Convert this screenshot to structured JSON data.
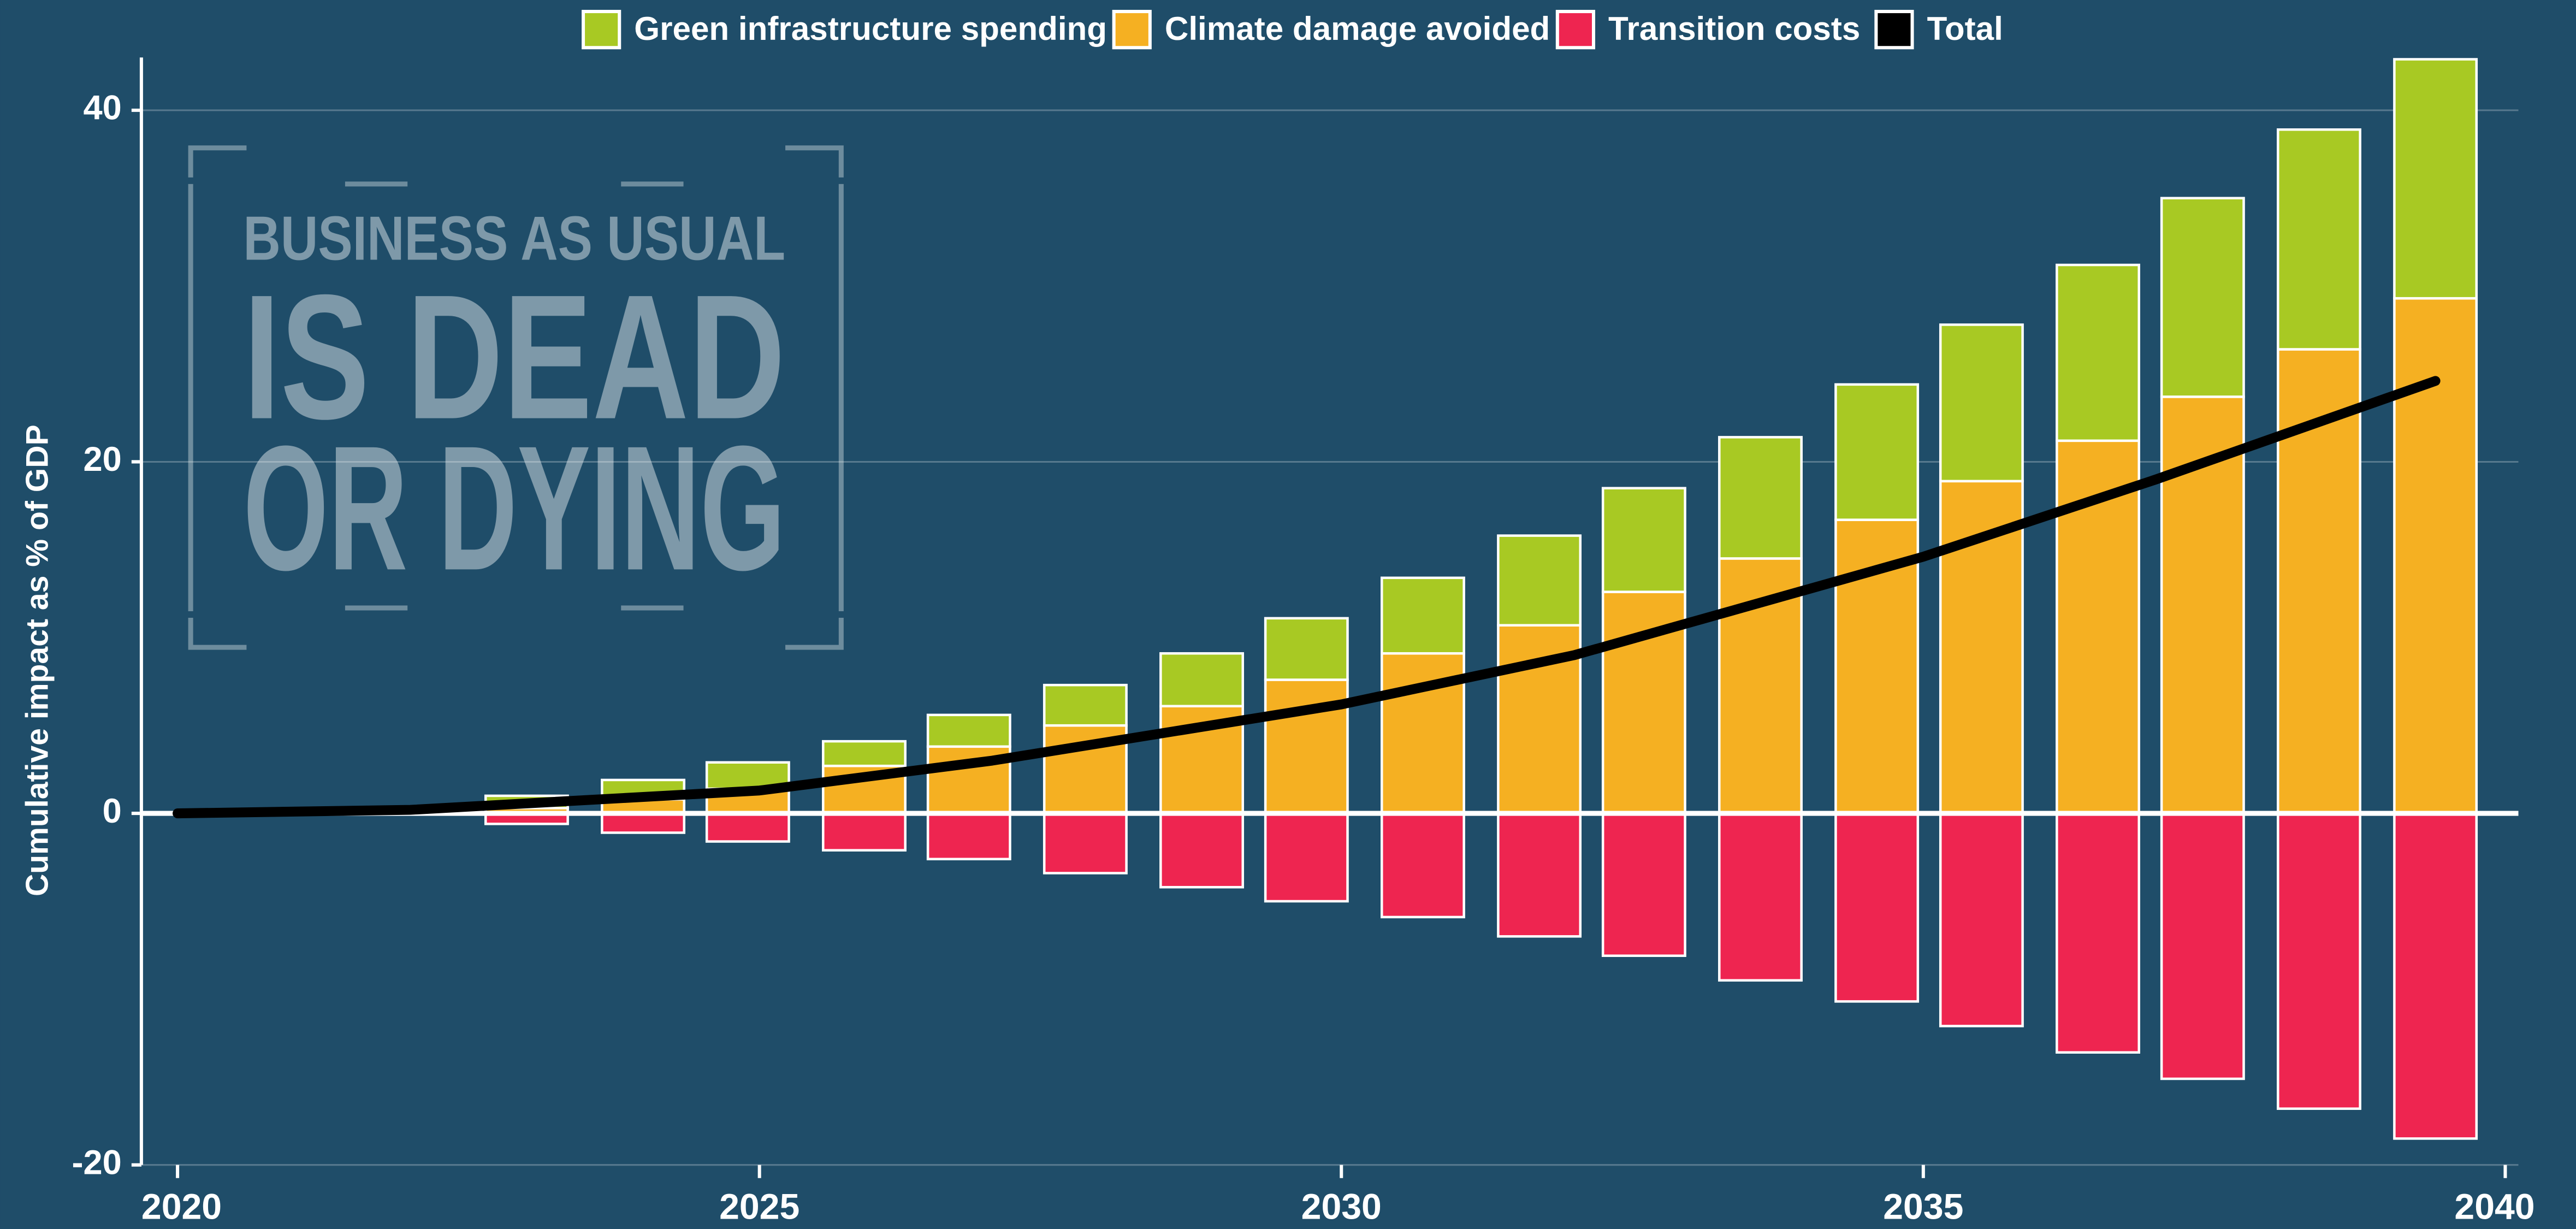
{
  "chart_data": {
    "type": "bar",
    "watermark_lines": [
      "BUSINESS AS USUAL",
      "IS DEAD",
      "OR DYING"
    ],
    "y_label": "Cumulative impact as % of GDP",
    "x": [
      2023.0,
      2024.0,
      2024.9,
      2025.9,
      2026.8,
      2027.8,
      2028.8,
      2029.7,
      2030.7,
      2031.7,
      2032.6,
      2033.6,
      2034.6,
      2035.5,
      2036.5,
      2037.4,
      2038.4,
      2039.4
    ],
    "series": [
      {
        "name": "Green infrastructure spending",
        "color": "#a8c923",
        "values": [
          0.7,
          1.1,
          1.5,
          1.4,
          1.8,
          2.3,
          3.0,
          3.5,
          4.3,
          5.1,
          5.9,
          6.9,
          7.7,
          8.9,
          10.0,
          11.3,
          12.5,
          13.6
        ]
      },
      {
        "name": "Climate damage avoided",
        "color": "#f5b022",
        "values": [
          0.3,
          0.8,
          1.4,
          2.7,
          3.8,
          5.0,
          6.1,
          7.6,
          9.1,
          10.7,
          12.6,
          14.5,
          16.7,
          18.9,
          21.2,
          23.7,
          26.4,
          29.3
        ]
      },
      {
        "name": "Transition costs",
        "color": "#ee2550",
        "values": [
          -0.6,
          -1.1,
          -1.6,
          -2.1,
          -2.6,
          -3.4,
          -4.2,
          -5.0,
          -5.9,
          -7.0,
          -8.1,
          -9.5,
          -10.7,
          -12.1,
          -13.6,
          -15.1,
          -16.8,
          -18.5
        ]
      },
      {
        "name": "Total",
        "color": "#000000",
        "type": "line",
        "x": [
          2020,
          2022,
          2025,
          2027,
          2030,
          2032,
          2035,
          2037,
          2039.4
        ],
        "values": [
          0,
          0.2,
          1.3,
          3.0,
          6.2,
          9.0,
          14.6,
          19.0,
          24.6
        ]
      }
    ],
    "xlim": [
      2020,
      2040
    ],
    "xticks": [
      2020,
      2025,
      2030,
      2035,
      2040
    ],
    "ylim": [
      -20,
      43
    ],
    "yticks": [
      -20,
      0,
      20,
      40
    ],
    "grid": true
  }
}
